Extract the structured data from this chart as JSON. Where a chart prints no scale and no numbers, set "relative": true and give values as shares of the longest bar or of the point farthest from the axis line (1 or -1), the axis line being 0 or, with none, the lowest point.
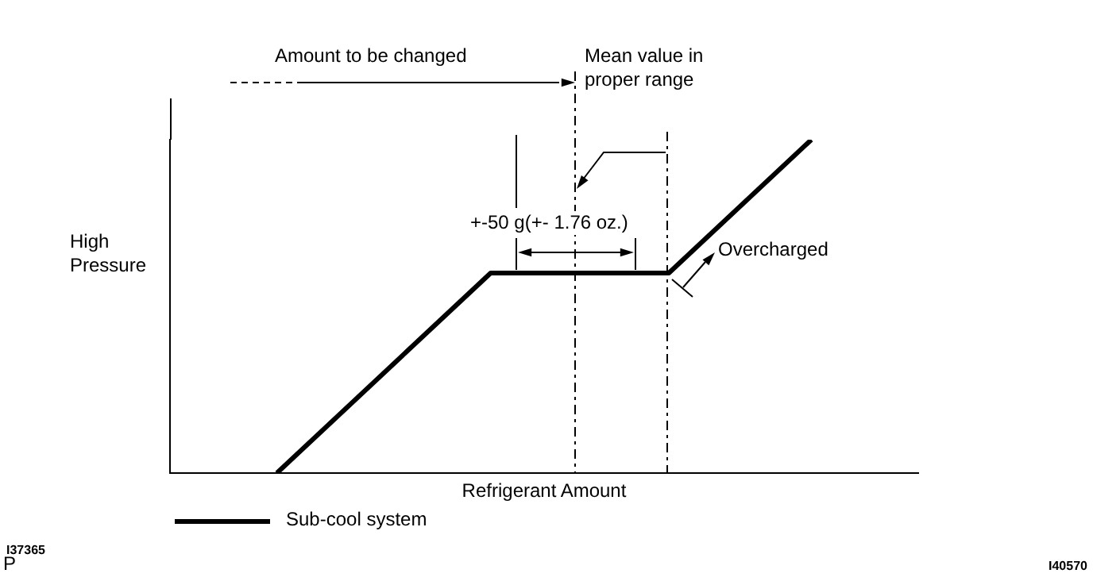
{
  "chart_data": {
    "type": "line",
    "relative": true,
    "xlabel": "Refrigerant Amount",
    "ylabel": "High Pressure",
    "categories": [
      null,
      null,
      null,
      null,
      null,
      null,
      null,
      null,
      null,
      null,
      null,
      null,
      null,
      null,
      null,
      null,
      null,
      null,
      null,
      null,
      null,
      null
    ],
    "tick_labels": false,
    "grid": false,
    "legend": "bottom left",
    "marker": "none",
    "series": [
      {
        "name": "Sub-cool system",
        "color": "#000000",
        "values": [
          null,
          null,
          null,
          0,
          null,
          null,
          null,
          null,
          null,
          0.6,
          null,
          null,
          null,
          null,
          0.6,
          null,
          null,
          null,
          1,
          null,
          null,
          null
        ]
      }
    ],
    "annotations": [
      "Amount to be changed",
      "Mean value in proper range",
      "+-50 g(+- 1.76 oz.)",
      "Overcharged",
      "I37365",
      "P",
      "I40570"
    ]
  }
}
